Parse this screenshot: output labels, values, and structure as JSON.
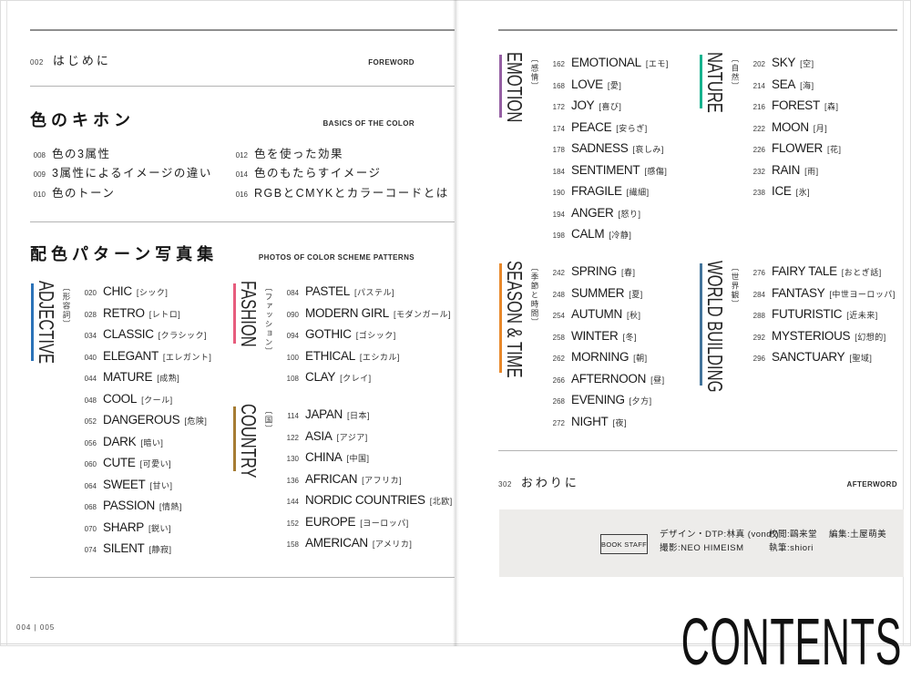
{
  "left_page": {
    "foreword": {
      "num": "002",
      "title": "はじめに",
      "label": "FOREWORD"
    },
    "basics": {
      "heading": "色のキホン",
      "label": "BASICS OF THE COLOR",
      "col1": [
        {
          "num": "008",
          "text": "色の3属性"
        },
        {
          "num": "009",
          "text": "3属性によるイメージの違い"
        },
        {
          "num": "010",
          "text": "色のトーン"
        }
      ],
      "col2": [
        {
          "num": "012",
          "text": "色を使った効果"
        },
        {
          "num": "014",
          "text": "色のもたらすイメージ"
        },
        {
          "num": "016",
          "text": "RGBとCMYKとカラーコードとは"
        }
      ]
    },
    "photos": {
      "heading": "配色パターン写真集",
      "label": "PHOTOS OF COLOR SCHEME PATTERNS"
    },
    "sections": {
      "adjective": {
        "name": "ADJECTIVE",
        "kana": "〔形容詞〕",
        "color": "#2b72b8",
        "items": [
          {
            "num": "020",
            "name": "CHIC",
            "kana": "[シック]"
          },
          {
            "num": "028",
            "name": "RETRO",
            "kana": "[レトロ]"
          },
          {
            "num": "034",
            "name": "CLASSIC",
            "kana": "[クラシック]"
          },
          {
            "num": "040",
            "name": "ELEGANT",
            "kana": "[エレガント]"
          },
          {
            "num": "044",
            "name": "MATURE",
            "kana": "[成熟]"
          },
          {
            "num": "048",
            "name": "COOL",
            "kana": "[クール]"
          },
          {
            "num": "052",
            "name": "DANGEROUS",
            "kana": "[危険]"
          },
          {
            "num": "056",
            "name": "DARK",
            "kana": "[暗い]"
          },
          {
            "num": "060",
            "name": "CUTE",
            "kana": "[可愛い]"
          },
          {
            "num": "064",
            "name": "SWEET",
            "kana": "[甘い]"
          },
          {
            "num": "068",
            "name": "PASSION",
            "kana": "[情熱]"
          },
          {
            "num": "070",
            "name": "SHARP",
            "kana": "[鋭い]"
          },
          {
            "num": "074",
            "name": "SILENT",
            "kana": "[静寂]"
          }
        ]
      },
      "fashion": {
        "name": "FASHION",
        "kana": "〔ファッション〕",
        "color": "#e75c7d",
        "items": [
          {
            "num": "084",
            "name": "PASTEL",
            "kana": "[パステル]"
          },
          {
            "num": "090",
            "name": "MODERN GIRL",
            "kana": "[モダンガール]"
          },
          {
            "num": "094",
            "name": "GOTHIC",
            "kana": "[ゴシック]"
          },
          {
            "num": "100",
            "name": "ETHICAL",
            "kana": "[エシカル]"
          },
          {
            "num": "108",
            "name": "CLAY",
            "kana": "[クレイ]"
          }
        ]
      },
      "country": {
        "name": "COUNTRY",
        "kana": "〔国〕",
        "color": "#a67c33",
        "items": [
          {
            "num": "114",
            "name": "JAPAN",
            "kana": "[日本]"
          },
          {
            "num": "122",
            "name": "ASIA",
            "kana": "[アジア]"
          },
          {
            "num": "130",
            "name": "CHINA",
            "kana": "[中国]"
          },
          {
            "num": "136",
            "name": "AFRICAN",
            "kana": "[アフリカ]"
          },
          {
            "num": "144",
            "name": "NORDIC COUNTRIES",
            "kana": "[北欧]"
          },
          {
            "num": "152",
            "name": "EUROPE",
            "kana": "[ヨーロッパ]"
          },
          {
            "num": "158",
            "name": "AMERICAN",
            "kana": "[アメリカ]"
          }
        ]
      }
    },
    "folio": "004 | 005"
  },
  "right_page": {
    "sections": {
      "emotion": {
        "name": "EMOTION",
        "kana": "〔感情〕",
        "color": "#955fa3",
        "items": [
          {
            "num": "162",
            "name": "EMOTIONAL",
            "kana": "[エモ]"
          },
          {
            "num": "168",
            "name": "LOVE",
            "kana": "[愛]"
          },
          {
            "num": "172",
            "name": "JOY",
            "kana": "[喜び]"
          },
          {
            "num": "174",
            "name": "PEACE",
            "kana": "[安らぎ]"
          },
          {
            "num": "178",
            "name": "SADNESS",
            "kana": "[哀しみ]"
          },
          {
            "num": "184",
            "name": "SENTIMENT",
            "kana": "[感傷]"
          },
          {
            "num": "190",
            "name": "FRAGILE",
            "kana": "[繊細]"
          },
          {
            "num": "194",
            "name": "ANGER",
            "kana": "[怒り]"
          },
          {
            "num": "198",
            "name": "CALM",
            "kana": "[冷静]"
          }
        ]
      },
      "nature": {
        "name": "NATURE",
        "kana": "〔自然〕",
        "color": "#16b28e",
        "items": [
          {
            "num": "202",
            "name": "SKY",
            "kana": "[空]"
          },
          {
            "num": "214",
            "name": "SEA",
            "kana": "[海]"
          },
          {
            "num": "216",
            "name": "FOREST",
            "kana": "[森]"
          },
          {
            "num": "222",
            "name": "MOON",
            "kana": "[月]"
          },
          {
            "num": "226",
            "name": "FLOWER",
            "kana": "[花]"
          },
          {
            "num": "232",
            "name": "RAIN",
            "kana": "[雨]"
          },
          {
            "num": "238",
            "name": "ICE",
            "kana": "[氷]"
          }
        ]
      },
      "season_time": {
        "name": "SEASON & TIME",
        "kana": "〔季節と時間〕",
        "color": "#e8882a",
        "items": [
          {
            "num": "242",
            "name": "SPRING",
            "kana": "[春]"
          },
          {
            "num": "248",
            "name": "SUMMER",
            "kana": "[夏]"
          },
          {
            "num": "254",
            "name": "AUTUMN",
            "kana": "[秋]"
          },
          {
            "num": "258",
            "name": "WINTER",
            "kana": "[冬]"
          },
          {
            "num": "262",
            "name": "MORNING",
            "kana": "[朝]"
          },
          {
            "num": "266",
            "name": "AFTERNOON",
            "kana": "[昼]"
          },
          {
            "num": "268",
            "name": "EVENING",
            "kana": "[夕方]"
          },
          {
            "num": "272",
            "name": "NIGHT",
            "kana": "[夜]"
          }
        ]
      },
      "world_building": {
        "name": "WORLD BUILDING",
        "kana": "〔世界観〕",
        "color": "#42749b",
        "items": [
          {
            "num": "276",
            "name": "FAIRY TALE",
            "kana": "[おとぎ話]"
          },
          {
            "num": "284",
            "name": "FANTASY",
            "kana": "[中世ヨーロッパ]"
          },
          {
            "num": "288",
            "name": "FUTURISTIC",
            "kana": "[近未来]"
          },
          {
            "num": "292",
            "name": "MYSTERIOUS",
            "kana": "[幻想的]"
          },
          {
            "num": "296",
            "name": "SANCTUARY",
            "kana": "[聖域]"
          }
        ]
      }
    },
    "afterword": {
      "num": "302",
      "title": "おわりに",
      "label": "AFTERWORD"
    },
    "book_staff": {
      "box_label": "BOOK STAFF",
      "design": "デザイン・DTP:林真 (vond°)",
      "photo": "撮影:NEO HIMEISM",
      "proof": "校閲:鷗来堂",
      "writing": "執筆:shiori",
      "edit": "編集:土屋萌美"
    },
    "contents_title": "CONTENTS"
  }
}
